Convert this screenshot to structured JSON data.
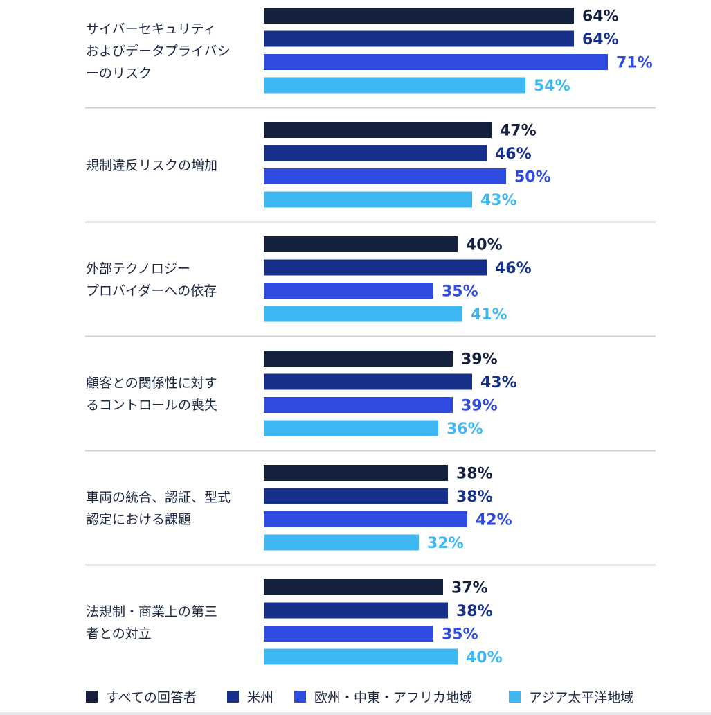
{
  "chart_data": {
    "type": "bar",
    "orientation": "horizontal",
    "xlim": [
      0,
      100
    ],
    "value_suffix": "%",
    "categories": [
      [
        "サイバーセキュリティ",
        "およびデータプライバシ",
        "ーのリスク"
      ],
      [
        "規制違反リスクの増加"
      ],
      [
        "外部テクノロジー",
        "プロバイダーへの依存"
      ],
      [
        "顧客との関係性に対す",
        "るコントロールの喪失"
      ],
      [
        "車両の統合、認証、型式",
        "認定における課題"
      ],
      [
        "法規制・商業上の第三",
        "者との対立"
      ]
    ],
    "series": [
      {
        "name": "すべての回答者",
        "color": "#13213f",
        "label_color": "#13213f",
        "values": [
          64,
          47,
          40,
          39,
          38,
          37
        ]
      },
      {
        "name": "米州",
        "color": "#17318a",
        "label_color": "#17318a",
        "values": [
          64,
          46,
          46,
          43,
          38,
          38
        ]
      },
      {
        "name": "欧州・中東・アフリカ地域",
        "color": "#2f4be0",
        "label_color": "#2f4be0",
        "values": [
          71,
          50,
          35,
          39,
          42,
          35
        ]
      },
      {
        "name": "アジア太平洋地域",
        "color": "#3db8f3",
        "label_color": "#3db8f3",
        "values": [
          54,
          43,
          41,
          36,
          32,
          40
        ]
      }
    ],
    "legend_position": "bottom",
    "divider_color": "#c9ccd3"
  }
}
